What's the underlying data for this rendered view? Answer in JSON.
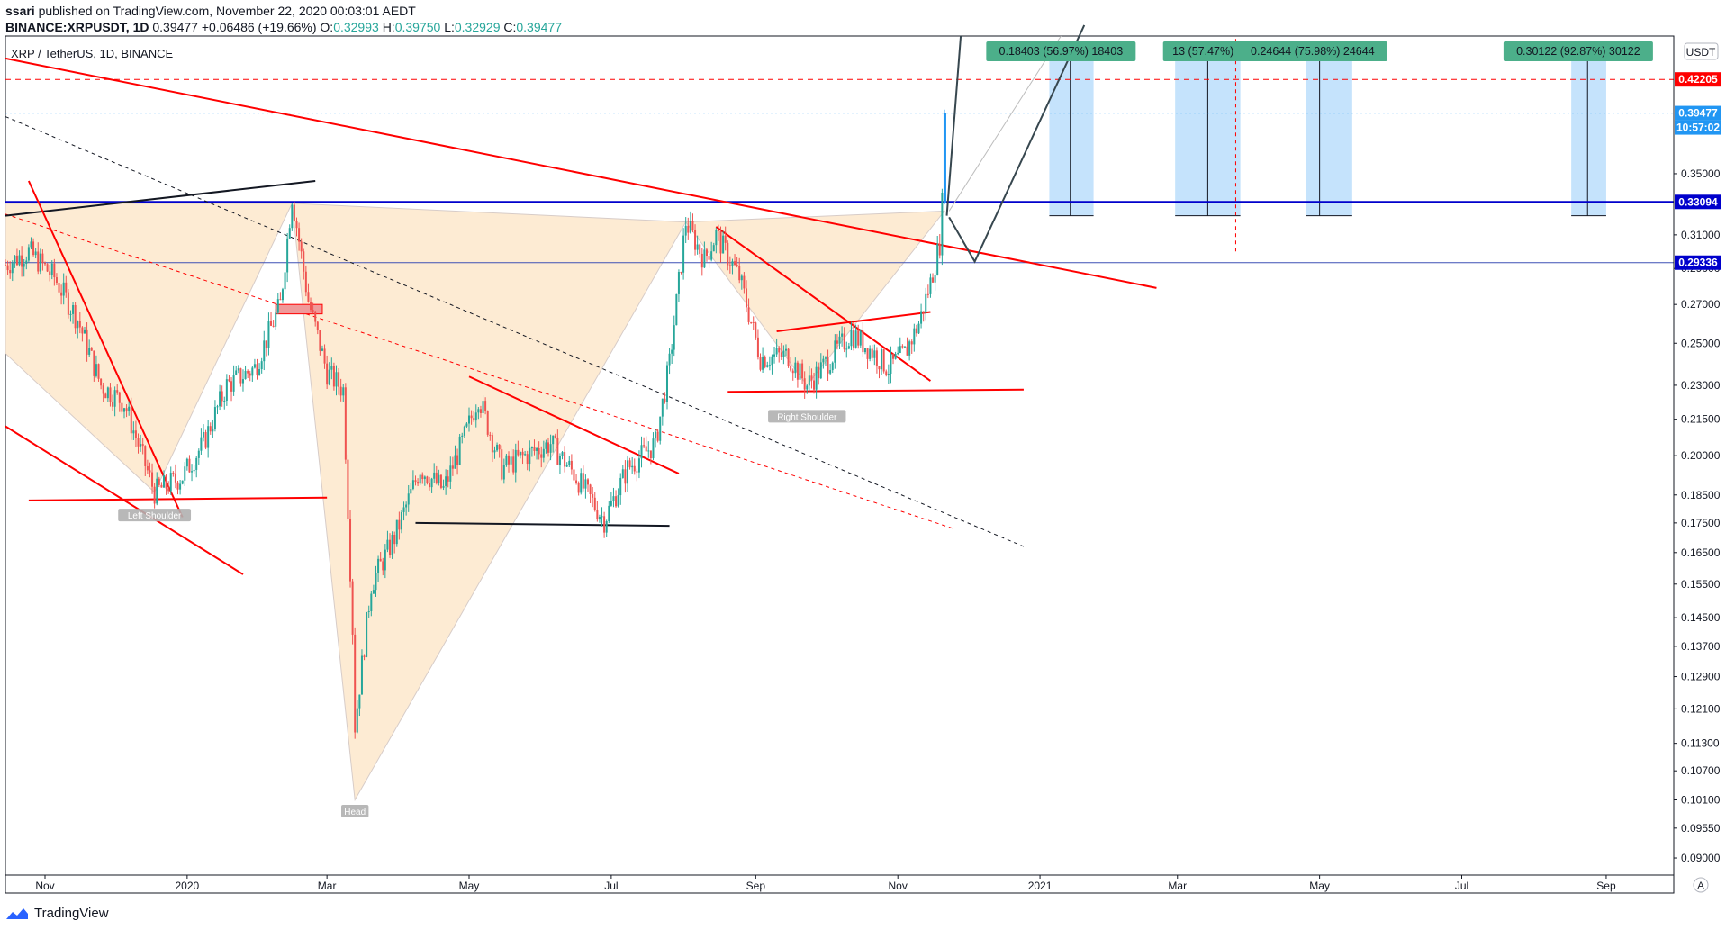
{
  "header": {
    "author": "ssari",
    "published": "published on TradingView.com, November 22, 2020 00:03:01 AEDT",
    "symbol_line": "BINANCE:XRPUSDT, 1D",
    "last": "0.39477",
    "change": "+0.06486 (+19.66%)",
    "ohlc": {
      "o_label": "O:",
      "o": "0.32993",
      "h_label": "H:",
      "h": "0.39750",
      "l_label": "L:",
      "l": "0.32929",
      "c_label": "C:",
      "c": "0.39477"
    }
  },
  "chart_title": "XRP / TetherUS, 1D, BINANCE",
  "currency_button": "USDT",
  "scale_button": "A",
  "footer": {
    "brand": "TradingView"
  },
  "colors": {
    "up": "#26a69a",
    "down": "#ef5350",
    "trend_red": "#ff0000",
    "support_blue": "#0000cc",
    "pattern_fill": "#fdebd3",
    "target_box": "#bbdefb",
    "label_green": "#4caf8a",
    "resist_label": "#ff0000",
    "last_label": "#2196f3"
  },
  "chart_data": {
    "type": "candlestick",
    "title": "XRP / TetherUS, 1D, BINANCE",
    "y_scale": "log",
    "ylim": [
      0.087,
      0.46
    ],
    "xlim": [
      "2019-10-15",
      "2021-09-30"
    ],
    "y_ticks": [
      "0.09000",
      "0.09550",
      "0.10100",
      "0.10700",
      "0.11300",
      "0.12100",
      "0.12900",
      "0.13700",
      "0.14500",
      "0.15500",
      "0.16500",
      "0.17500",
      "0.18500",
      "0.20000",
      "0.21500",
      "0.23000",
      "0.25000",
      "0.27000",
      "0.29000",
      "0.31000",
      "0.35000"
    ],
    "x_ticks": [
      {
        "label": "Nov",
        "date": "2019-11-01"
      },
      {
        "label": "2020",
        "date": "2020-01-01"
      },
      {
        "label": "Mar",
        "date": "2020-03-01"
      },
      {
        "label": "May",
        "date": "2020-05-01"
      },
      {
        "label": "Jul",
        "date": "2020-07-01"
      },
      {
        "label": "Sep",
        "date": "2020-09-01"
      },
      {
        "label": "Nov",
        "date": "2020-11-01"
      },
      {
        "label": "2021",
        "date": "2021-01-01"
      },
      {
        "label": "Mar",
        "date": "2021-03-01"
      },
      {
        "label": "May",
        "date": "2021-05-01"
      },
      {
        "label": "Jul",
        "date": "2021-07-01"
      },
      {
        "label": "Sep",
        "date": "2021-09-01"
      }
    ],
    "price_path": [
      [
        "2019-10-15",
        0.292
      ],
      [
        "2019-10-25",
        0.3
      ],
      [
        "2019-11-05",
        0.285
      ],
      [
        "2019-11-15",
        0.262
      ],
      [
        "2019-11-25",
        0.23
      ],
      [
        "2019-12-05",
        0.222
      ],
      [
        "2019-12-18",
        0.186
      ],
      [
        "2019-12-30",
        0.192
      ],
      [
        "2020-01-08",
        0.205
      ],
      [
        "2020-01-18",
        0.23
      ],
      [
        "2020-01-30",
        0.238
      ],
      [
        "2020-02-10",
        0.27
      ],
      [
        "2020-02-15",
        0.335
      ],
      [
        "2020-02-22",
        0.272
      ],
      [
        "2020-03-01",
        0.236
      ],
      [
        "2020-03-08",
        0.228
      ],
      [
        "2020-03-12",
        0.142
      ],
      [
        "2020-03-13",
        0.117
      ],
      [
        "2020-03-20",
        0.155
      ],
      [
        "2020-03-30",
        0.17
      ],
      [
        "2020-04-10",
        0.195
      ],
      [
        "2020-04-20",
        0.187
      ],
      [
        "2020-04-30",
        0.21
      ],
      [
        "2020-05-05",
        0.225
      ],
      [
        "2020-05-15",
        0.195
      ],
      [
        "2020-05-25",
        0.2
      ],
      [
        "2020-06-05",
        0.205
      ],
      [
        "2020-06-15",
        0.193
      ],
      [
        "2020-06-28",
        0.176
      ],
      [
        "2020-07-08",
        0.195
      ],
      [
        "2020-07-20",
        0.205
      ],
      [
        "2020-07-26",
        0.24
      ],
      [
        "2020-08-02",
        0.318
      ],
      [
        "2020-08-10",
        0.295
      ],
      [
        "2020-08-15",
        0.31
      ],
      [
        "2020-08-25",
        0.285
      ],
      [
        "2020-09-03",
        0.243
      ],
      [
        "2020-09-15",
        0.244
      ],
      [
        "2020-09-23",
        0.23
      ],
      [
        "2020-10-01",
        0.24
      ],
      [
        "2020-10-12",
        0.255
      ],
      [
        "2020-10-20",
        0.247
      ],
      [
        "2020-10-28",
        0.238
      ],
      [
        "2020-11-04",
        0.245
      ],
      [
        "2020-11-10",
        0.26
      ],
      [
        "2020-11-15",
        0.282
      ],
      [
        "2020-11-19",
        0.305
      ],
      [
        "2020-11-20",
        0.33
      ],
      [
        "2020-11-21",
        0.39477
      ]
    ],
    "series": [
      {
        "name": "XRPUSDT",
        "last": 0.39477
      }
    ],
    "price_labels": [
      {
        "text": "0.42205",
        "value": 0.42205,
        "kind": "resistance"
      },
      {
        "text": "0.39477",
        "value": 0.39477,
        "kind": "last"
      },
      {
        "text": "10:57:02",
        "kind": "countdown"
      },
      {
        "text": "0.33094",
        "value": 0.33094,
        "kind": "support-blue"
      },
      {
        "text": "0.29336",
        "value": 0.29336,
        "kind": "support-blue"
      }
    ],
    "horizontal_lines": [
      {
        "value": 0.42205,
        "style": "dashed",
        "color": "#ff0000"
      },
      {
        "value": 0.39477,
        "style": "dotted",
        "color": "#2196f3"
      },
      {
        "value": 0.33094,
        "style": "solid",
        "color": "#0000cc"
      },
      {
        "value": 0.29336,
        "style": "solid",
        "color": "#3f51b5"
      }
    ],
    "target_labels": [
      {
        "text": "0.18403 (56.97%) 18403",
        "date": "2021-01-10"
      },
      {
        "text": "13 (57.47%)",
        "date": "2021-03-12"
      },
      {
        "text": "0.24644 (75.98%) 24644",
        "date": "2021-04-28"
      },
      {
        "text": "0.30122 (92.87%) 30122",
        "date": "2021-08-20"
      }
    ],
    "target_boxes": [
      {
        "from": "2021-01-05",
        "to": "2021-01-24",
        "mid": "2021-01-14"
      },
      {
        "from": "2021-02-28",
        "to": "2021-03-28",
        "mid": "2021-03-14"
      },
      {
        "from": "2021-04-25",
        "to": "2021-05-15",
        "mid": "2021-05-01"
      },
      {
        "from": "2021-08-17",
        "to": "2021-09-01",
        "mid": "2021-08-24"
      }
    ],
    "annotations": [
      {
        "text": "Left Shoulder",
        "date": "2019-12-18",
        "value": 0.18
      },
      {
        "text": "Head",
        "date": "2020-03-13",
        "value": 0.1
      },
      {
        "text": "Right Shoulder",
        "date": "2020-09-23",
        "value": 0.219
      }
    ]
  }
}
